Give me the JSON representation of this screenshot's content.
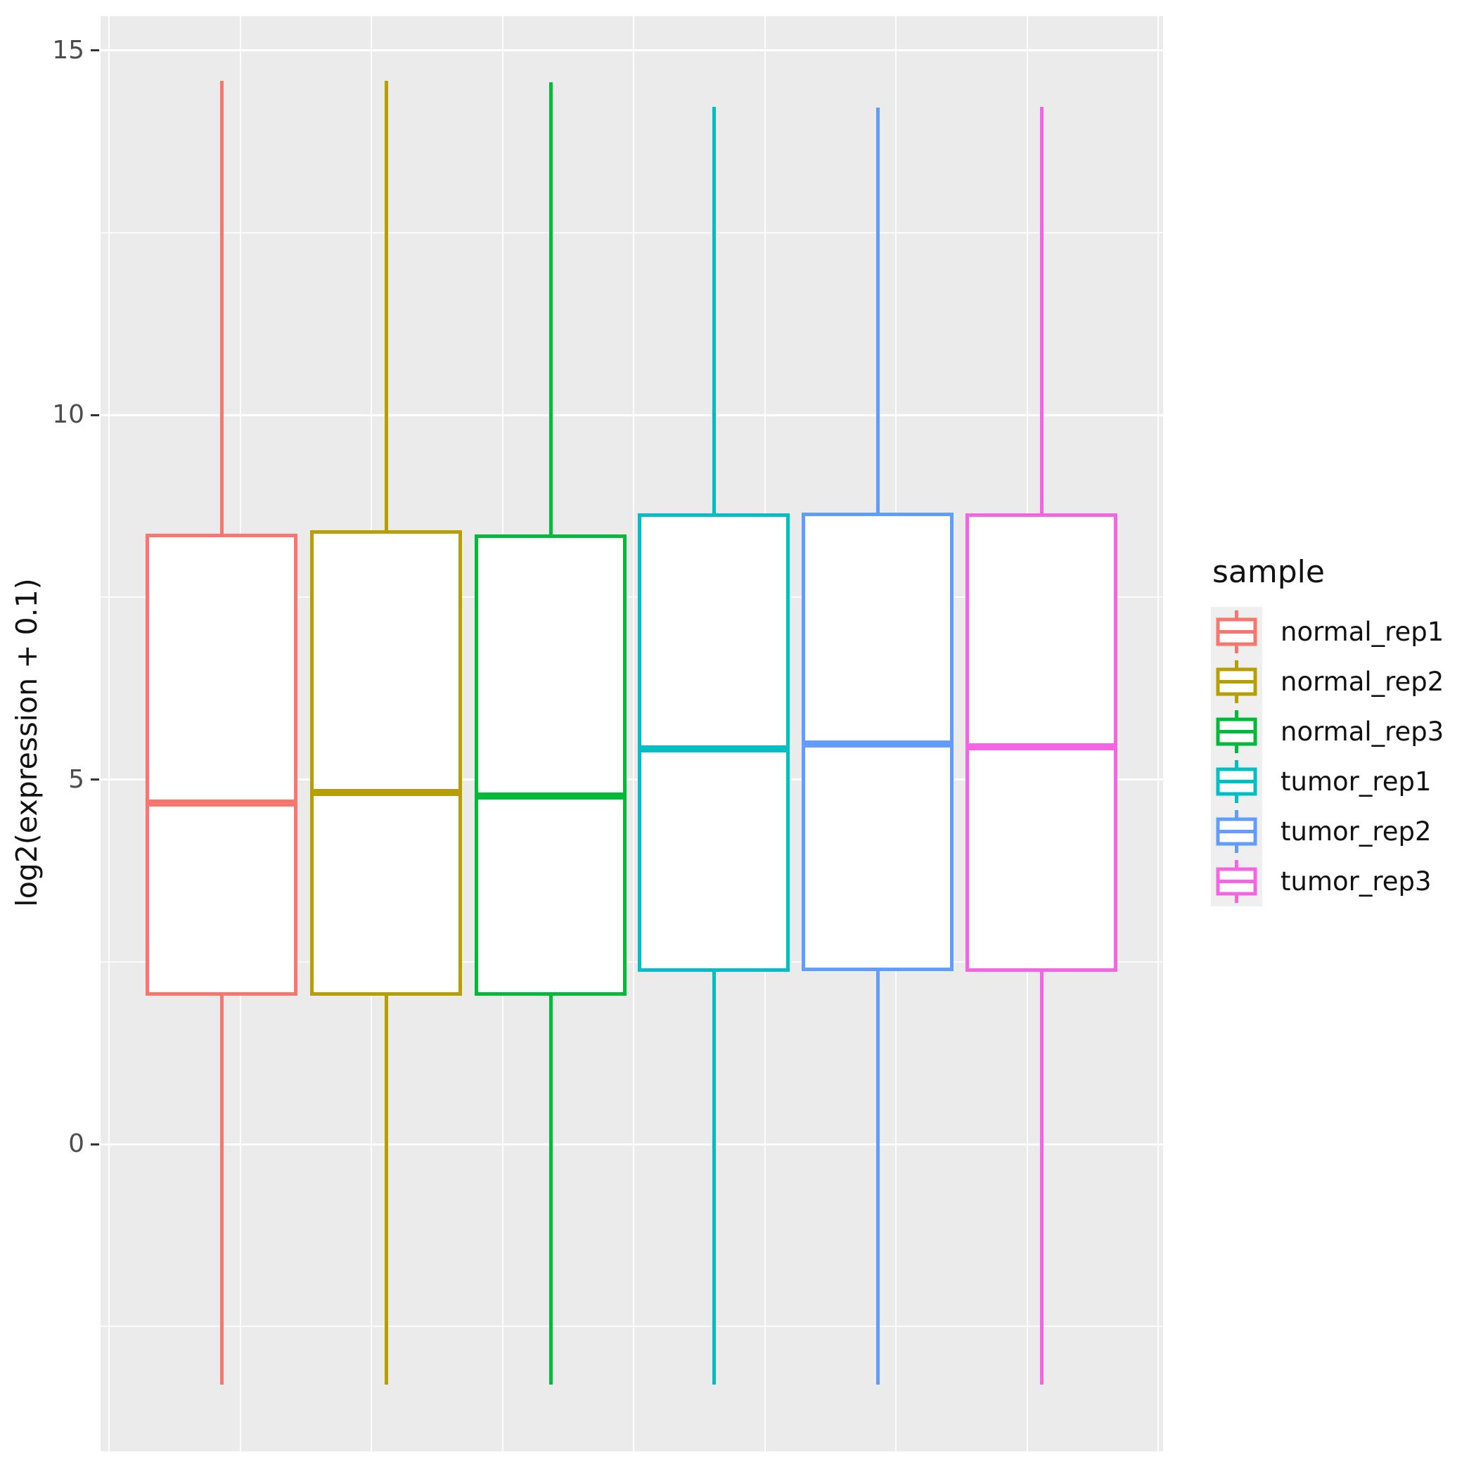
{
  "y_axis": {
    "title": "log2(expression + 0.1)",
    "ticks": [
      {
        "label": "15",
        "value": 15
      },
      {
        "label": "10",
        "value": 10
      },
      {
        "label": "5",
        "value": 5
      },
      {
        "label": "0",
        "value": 0
      }
    ],
    "minor_ticks": [
      12.5,
      7.5,
      2.5,
      -2.5
    ]
  },
  "legend": {
    "title": "sample",
    "entries": [
      {
        "label": "normal_rep1",
        "color": "#F8766D"
      },
      {
        "label": "normal_rep2",
        "color": "#B79F00"
      },
      {
        "label": "normal_rep3",
        "color": "#00BA38"
      },
      {
        "label": "tumor_rep1",
        "color": "#00BFC4"
      },
      {
        "label": "tumor_rep2",
        "color": "#619CFF"
      },
      {
        "label": "tumor_rep3",
        "color": "#F564E3"
      }
    ]
  },
  "colors": {
    "panel_background": "#EBEBEB",
    "gridline": "#FFFFFF",
    "tick_text": "#4D4D4D"
  },
  "chart_data": {
    "type": "boxplot",
    "title": "",
    "xlabel": "",
    "ylabel": "log2(expression + 0.1)",
    "ylim": [
      -4.2,
      15.5
    ],
    "y_major_breaks": [
      0,
      5,
      10,
      15
    ],
    "y_minor_breaks": [
      -2.5,
      2.5,
      7.5,
      12.5
    ],
    "grid": true,
    "legend_position": "right",
    "categories": [
      "normal_rep1",
      "normal_rep2",
      "normal_rep3",
      "tumor_rep1",
      "tumor_rep2",
      "tumor_rep3"
    ],
    "series": [
      {
        "name": "normal_rep1",
        "color": "#F8766D",
        "whisker_low": -3.3,
        "q1": 2.03,
        "median": 4.68,
        "q3": 8.37,
        "whisker_high": 14.58
      },
      {
        "name": "normal_rep2",
        "color": "#B79F00",
        "whisker_low": -3.3,
        "q1": 2.03,
        "median": 4.82,
        "q3": 8.42,
        "whisker_high": 14.58
      },
      {
        "name": "normal_rep3",
        "color": "#00BA38",
        "whisker_low": -3.3,
        "q1": 2.03,
        "median": 4.77,
        "q3": 8.36,
        "whisker_high": 14.56
      },
      {
        "name": "tumor_rep1",
        "color": "#00BFC4",
        "whisker_low": -3.3,
        "q1": 2.36,
        "median": 5.42,
        "q3": 8.65,
        "whisker_high": 14.22
      },
      {
        "name": "tumor_rep2",
        "color": "#619CFF",
        "whisker_low": -3.3,
        "q1": 2.37,
        "median": 5.49,
        "q3": 8.66,
        "whisker_high": 14.21
      },
      {
        "name": "tumor_rep3",
        "color": "#F564E3",
        "whisker_low": -3.3,
        "q1": 2.36,
        "median": 5.45,
        "q3": 8.65,
        "whisker_high": 14.22
      }
    ]
  }
}
